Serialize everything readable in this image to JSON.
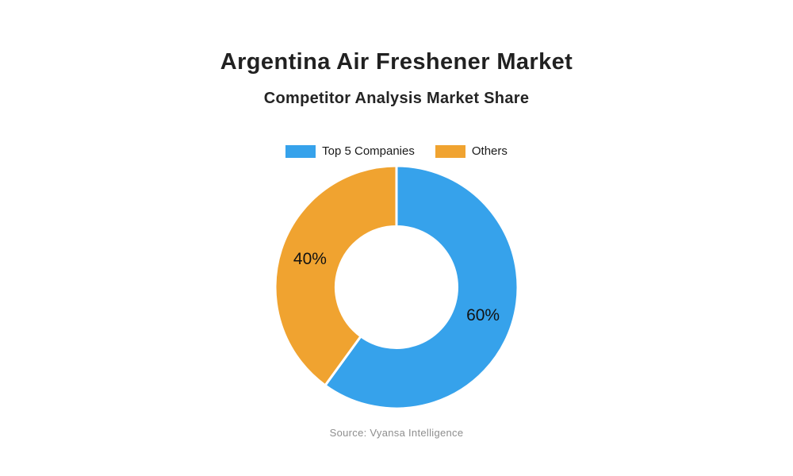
{
  "page": {
    "title": "Argentina Air Freshener Market",
    "subtitle": "Competitor Analysis Market Share",
    "source": "Source: Vyansa Intelligence",
    "background_color": "#ffffff"
  },
  "chart_data": {
    "type": "pie",
    "subtype": "donut",
    "title": "Argentina Air Freshener Market",
    "subtitle": "Competitor Analysis Market Share",
    "slices": [
      {
        "label": "Top 5 Companies",
        "value": 60,
        "percent_label": "60%",
        "color": "#36A2EB"
      },
      {
        "label": "Others",
        "value": 40,
        "percent_label": "40%",
        "color": "#F0A330"
      }
    ],
    "start_angle_deg": -90,
    "direction": "clockwise",
    "donut_hole_ratio": 0.5,
    "slice_border_color": "#ffffff",
    "slice_border_width": 3,
    "label_color": "#121212",
    "legend_position": "top",
    "source": "Source: Vyansa Intelligence"
  }
}
